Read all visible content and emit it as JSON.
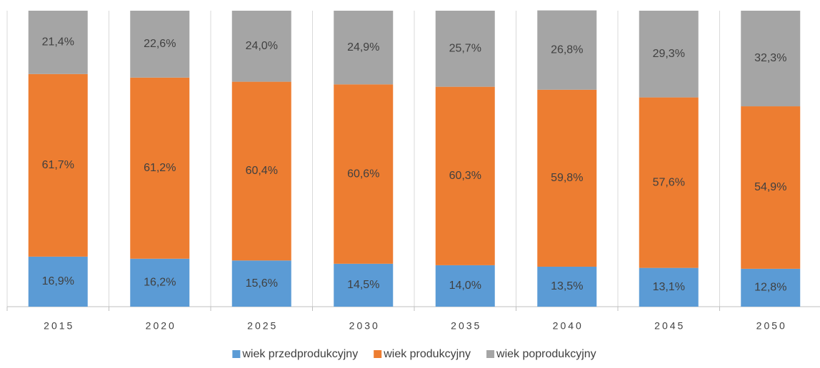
{
  "chart_data": {
    "type": "stacked_bar",
    "categories": [
      "2015",
      "2020",
      "2025",
      "2030",
      "2035",
      "2040",
      "2045",
      "2050"
    ],
    "series": [
      {
        "name": "wiek przedprodukcyjny",
        "color": "#5b9bd5",
        "values": [
          16.9,
          16.2,
          15.6,
          14.5,
          14.0,
          13.5,
          13.1,
          12.8
        ],
        "value_labels": [
          "16,9%",
          "16,2%",
          "15,6%",
          "14,5%",
          "14,0%",
          "13,5%",
          "13,1%",
          "12,8%"
        ]
      },
      {
        "name": "wiek produkcyjny",
        "color": "#ed7d31",
        "values": [
          61.7,
          61.2,
          60.4,
          60.6,
          60.3,
          59.8,
          57.6,
          54.9
        ],
        "value_labels": [
          "61,7%",
          "61,2%",
          "60,4%",
          "60,6%",
          "60,3%",
          "59,8%",
          "57,6%",
          "54,9%"
        ]
      },
      {
        "name": "wiek poprodukcyjny",
        "color": "#a5a5a5",
        "values": [
          21.4,
          22.6,
          24.0,
          24.9,
          25.7,
          26.8,
          29.3,
          32.3
        ],
        "value_labels": [
          "21,4%",
          "22,6%",
          "24,0%",
          "24,9%",
          "25,7%",
          "26,8%",
          "29,3%",
          "32,3%"
        ]
      }
    ],
    "ylim": [
      0,
      100
    ],
    "legend": "bottom"
  }
}
